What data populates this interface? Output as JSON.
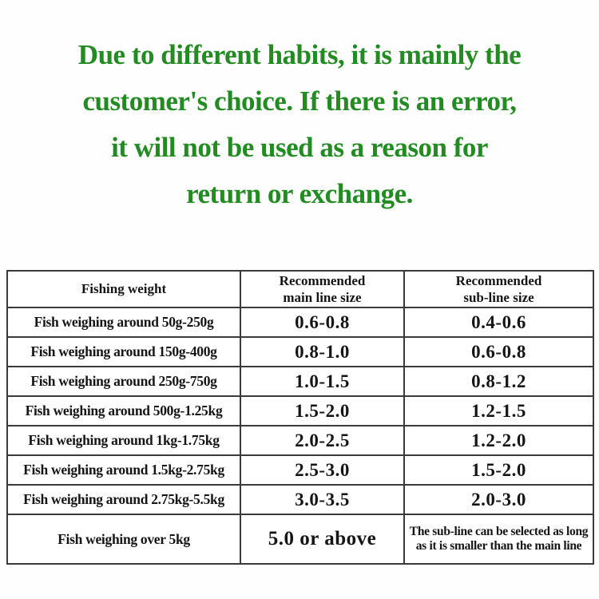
{
  "heading": {
    "color": "#228b22",
    "lines": [
      "Due to different habits, it is mainly the",
      "customer's choice. If there is an error,",
      "it will not be used as a reason for",
      "return or exchange."
    ]
  },
  "table": {
    "headers": {
      "weight": "Fishing weight",
      "main": "Recommended\nmain line size",
      "sub": "Recommended\nsub-line size"
    },
    "rows": [
      {
        "weight": "Fish weighing around 50g-250g",
        "main": "0.6-0.8",
        "sub": "0.4-0.6"
      },
      {
        "weight": "Fish weighing around 150g-400g",
        "main": "0.8-1.0",
        "sub": "0.6-0.8"
      },
      {
        "weight": "Fish weighing around 250g-750g",
        "main": "1.0-1.5",
        "sub": "0.8-1.2"
      },
      {
        "weight": "Fish weighing around 500g-1.25kg",
        "main": "1.5-2.0",
        "sub": "1.2-1.5"
      },
      {
        "weight": "Fish weighing around 1kg-1.75kg",
        "main": "2.0-2.5",
        "sub": "1.2-2.0"
      },
      {
        "weight": "Fish weighing around 1.5kg-2.75kg",
        "main": "2.5-3.0",
        "sub": "1.5-2.0"
      },
      {
        "weight": "Fish weighing around 2.75kg-5.5kg",
        "main": "3.0-3.5",
        "sub": "2.0-3.0"
      },
      {
        "weight": "Fish weighing over 5kg",
        "main": "5.0 or above",
        "sub": "The sub-line can be selected as long as it is smaller than the main line"
      }
    ],
    "border_color": "#3a3a3a"
  }
}
